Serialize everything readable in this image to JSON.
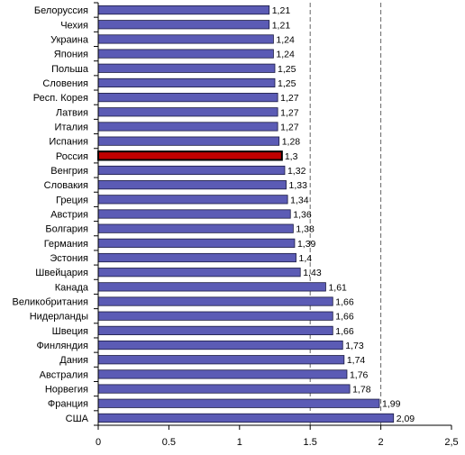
{
  "chart_data": {
    "type": "bar",
    "orientation": "horizontal",
    "categories": [
      "Белоруссия",
      "Чехия",
      "Украина",
      "Япония",
      "Польша",
      "Словения",
      "Респ. Корея",
      "Латвия",
      "Италия",
      "Испания",
      "Россия",
      "Венгрия",
      "Словакия",
      "Греция",
      "Австрия",
      "Болгария",
      "Германия",
      "Эстония",
      "Швейцария",
      "Канада",
      "Великобритания",
      "Нидерланды",
      "Швеция",
      "Финляндия",
      "Дания",
      "Австралия",
      "Норвегия",
      "Франция",
      "США"
    ],
    "values": [
      1.21,
      1.21,
      1.24,
      1.24,
      1.25,
      1.25,
      1.27,
      1.27,
      1.27,
      1.28,
      1.3,
      1.32,
      1.33,
      1.34,
      1.36,
      1.38,
      1.39,
      1.4,
      1.43,
      1.61,
      1.66,
      1.66,
      1.66,
      1.73,
      1.74,
      1.76,
      1.78,
      1.99,
      2.09
    ],
    "value_labels": [
      "1,21",
      "1,21",
      "1,24",
      "1,24",
      "1,25",
      "1,25",
      "1,27",
      "1,27",
      "1,27",
      "1,28",
      "1,3",
      "1,32",
      "1,33",
      "1,34",
      "1,36",
      "1,38",
      "1,39",
      "1,4",
      "1,43",
      "1,61",
      "1,66",
      "1,66",
      "1,66",
      "1,73",
      "1,74",
      "1,76",
      "1,78",
      "1,99",
      "2,09"
    ],
    "highlight_category": "Россия",
    "xlim": [
      0,
      2.5
    ],
    "x_ticks": [
      0,
      0.5,
      1,
      1.5,
      2,
      2.5
    ],
    "x_tick_labels": [
      "0",
      "0.5",
      "1",
      "1.5",
      "2",
      "2,5"
    ],
    "gridlines_dashed_at": [
      1.5,
      2
    ],
    "colors": {
      "bar_fill": "#5b5bb5",
      "bar_stroke": "#1a1a40",
      "highlight_fill": "#c00000",
      "highlight_stroke": "#000000"
    }
  }
}
